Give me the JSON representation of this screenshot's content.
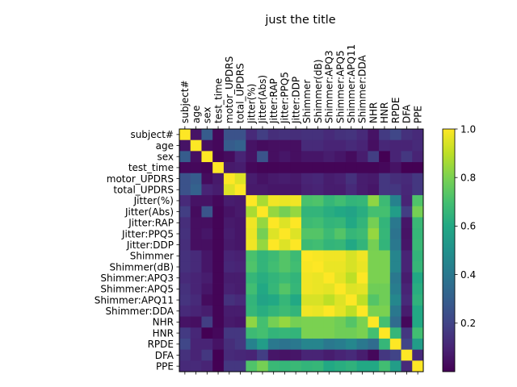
{
  "chart_data": {
    "type": "heatmap",
    "title": "just the title",
    "labels": [
      "subject#",
      "age",
      "sex",
      "test_time",
      "motor_UPDRS",
      "total_UPDRS",
      "Jitter(%)",
      "Jitter(Abs)",
      "Jitter:RAP",
      "Jitter:PPQ5",
      "Jitter:DDP",
      "Shimmer",
      "Shimmer(dB)",
      "Shimmer:APQ3",
      "Shimmer:APQ5",
      "Shimmer:APQ11",
      "Shimmer:DDA",
      "NHR",
      "HNR",
      "RPDE",
      "DFA",
      "PPE"
    ],
    "colormap": "viridis",
    "colorbar": {
      "ticks": [
        "0.2",
        "0.4",
        "0.6",
        "0.8",
        "1.0"
      ],
      "range": [
        0.0,
        1.0
      ]
    },
    "values": [
      [
        1.0,
        0.05,
        0.29,
        0.02,
        0.25,
        0.25,
        0.12,
        0.18,
        0.13,
        0.14,
        0.13,
        0.14,
        0.14,
        0.12,
        0.14,
        0.15,
        0.12,
        0.05,
        0.17,
        0.21,
        0.14,
        0.12
      ],
      [
        0.05,
        1.0,
        0.04,
        0.02,
        0.29,
        0.31,
        0.05,
        0.03,
        0.04,
        0.04,
        0.04,
        0.12,
        0.12,
        0.1,
        0.1,
        0.12,
        0.1,
        0.04,
        0.11,
        0.1,
        0.1,
        0.12
      ],
      [
        0.29,
        0.04,
        1.0,
        0.01,
        0.03,
        0.1,
        0.05,
        0.26,
        0.04,
        0.06,
        0.04,
        0.06,
        0.06,
        0.08,
        0.06,
        0.03,
        0.08,
        0.18,
        0.0,
        0.1,
        0.16,
        0.1
      ],
      [
        0.02,
        0.02,
        0.01,
        1.0,
        0.07,
        0.08,
        0.02,
        0.01,
        0.01,
        0.01,
        0.01,
        0.01,
        0.01,
        0.01,
        0.01,
        0.01,
        0.01,
        0.01,
        0.02,
        0.05,
        0.0,
        0.0
      ],
      [
        0.25,
        0.29,
        0.03,
        0.07,
        1.0,
        0.95,
        0.08,
        0.05,
        0.07,
        0.08,
        0.07,
        0.1,
        0.11,
        0.08,
        0.09,
        0.14,
        0.08,
        0.07,
        0.16,
        0.13,
        0.12,
        0.16
      ],
      [
        0.25,
        0.31,
        0.1,
        0.08,
        0.95,
        1.0,
        0.07,
        0.07,
        0.06,
        0.06,
        0.06,
        0.09,
        0.1,
        0.08,
        0.08,
        0.12,
        0.08,
        0.06,
        0.16,
        0.16,
        0.11,
        0.16
      ],
      [
        0.12,
        0.05,
        0.05,
        0.02,
        0.08,
        0.07,
        1.0,
        0.87,
        0.98,
        0.97,
        0.98,
        0.71,
        0.72,
        0.66,
        0.69,
        0.65,
        0.66,
        0.83,
        0.68,
        0.44,
        0.1,
        0.72
      ],
      [
        0.18,
        0.03,
        0.26,
        0.01,
        0.05,
        0.07,
        0.87,
        1.0,
        0.84,
        0.79,
        0.84,
        0.65,
        0.65,
        0.62,
        0.6,
        0.58,
        0.62,
        0.7,
        0.7,
        0.55,
        0.18,
        0.79
      ],
      [
        0.13,
        0.04,
        0.04,
        0.01,
        0.07,
        0.06,
        0.98,
        0.84,
        1.0,
        0.95,
        1.0,
        0.68,
        0.69,
        0.65,
        0.66,
        0.6,
        0.65,
        0.79,
        0.65,
        0.4,
        0.06,
        0.67
      ],
      [
        0.14,
        0.04,
        0.06,
        0.01,
        0.08,
        0.06,
        0.97,
        0.79,
        0.95,
        1.0,
        0.95,
        0.73,
        0.73,
        0.68,
        0.73,
        0.66,
        0.68,
        0.84,
        0.66,
        0.38,
        0.05,
        0.66
      ],
      [
        0.13,
        0.04,
        0.04,
        0.01,
        0.07,
        0.06,
        0.98,
        0.84,
        1.0,
        0.95,
        1.0,
        0.68,
        0.69,
        0.65,
        0.66,
        0.6,
        0.65,
        0.79,
        0.65,
        0.4,
        0.06,
        0.67
      ],
      [
        0.14,
        0.12,
        0.06,
        0.01,
        0.1,
        0.09,
        0.71,
        0.65,
        0.68,
        0.73,
        0.68,
        1.0,
        0.99,
        0.98,
        0.98,
        0.94,
        0.98,
        0.8,
        0.8,
        0.45,
        0.1,
        0.65
      ],
      [
        0.14,
        0.12,
        0.06,
        0.01,
        0.11,
        0.1,
        0.72,
        0.65,
        0.69,
        0.73,
        0.69,
        0.99,
        1.0,
        0.97,
        0.97,
        0.94,
        0.97,
        0.8,
        0.8,
        0.45,
        0.1,
        0.66
      ],
      [
        0.12,
        0.1,
        0.08,
        0.01,
        0.08,
        0.08,
        0.66,
        0.62,
        0.65,
        0.68,
        0.65,
        0.98,
        0.97,
        1.0,
        0.96,
        0.9,
        1.0,
        0.8,
        0.8,
        0.4,
        0.08,
        0.6
      ],
      [
        0.14,
        0.1,
        0.06,
        0.01,
        0.09,
        0.08,
        0.69,
        0.6,
        0.66,
        0.73,
        0.66,
        0.98,
        0.97,
        0.96,
        1.0,
        0.95,
        0.96,
        0.78,
        0.78,
        0.42,
        0.1,
        0.62
      ],
      [
        0.15,
        0.12,
        0.03,
        0.01,
        0.14,
        0.12,
        0.65,
        0.58,
        0.6,
        0.66,
        0.6,
        0.94,
        0.94,
        0.9,
        0.95,
        1.0,
        0.9,
        0.73,
        0.78,
        0.46,
        0.12,
        0.64
      ],
      [
        0.12,
        0.1,
        0.08,
        0.01,
        0.08,
        0.08,
        0.66,
        0.62,
        0.65,
        0.68,
        0.65,
        0.98,
        0.97,
        1.0,
        0.96,
        0.9,
        1.0,
        0.8,
        0.8,
        0.4,
        0.08,
        0.6
      ],
      [
        0.05,
        0.04,
        0.18,
        0.01,
        0.07,
        0.06,
        0.83,
        0.7,
        0.79,
        0.84,
        0.79,
        0.8,
        0.8,
        0.8,
        0.78,
        0.73,
        0.8,
        1.0,
        0.7,
        0.35,
        0.02,
        0.6
      ],
      [
        0.17,
        0.11,
        0.0,
        0.02,
        0.16,
        0.16,
        0.68,
        0.7,
        0.65,
        0.66,
        0.65,
        0.8,
        0.8,
        0.8,
        0.78,
        0.78,
        0.8,
        0.7,
        1.0,
        0.66,
        0.16,
        0.69
      ],
      [
        0.21,
        0.1,
        0.1,
        0.05,
        0.13,
        0.16,
        0.44,
        0.55,
        0.4,
        0.38,
        0.4,
        0.45,
        0.45,
        0.4,
        0.42,
        0.46,
        0.4,
        0.35,
        0.66,
        1.0,
        0.2,
        0.55
      ],
      [
        0.14,
        0.1,
        0.16,
        0.0,
        0.12,
        0.11,
        0.1,
        0.18,
        0.06,
        0.05,
        0.06,
        0.1,
        0.1,
        0.08,
        0.1,
        0.12,
        0.08,
        0.02,
        0.16,
        0.2,
        1.0,
        0.12
      ],
      [
        0.12,
        0.12,
        0.1,
        0.0,
        0.16,
        0.16,
        0.72,
        0.79,
        0.67,
        0.66,
        0.67,
        0.65,
        0.66,
        0.6,
        0.62,
        0.64,
        0.6,
        0.6,
        0.69,
        0.55,
        0.12,
        1.0
      ]
    ]
  }
}
